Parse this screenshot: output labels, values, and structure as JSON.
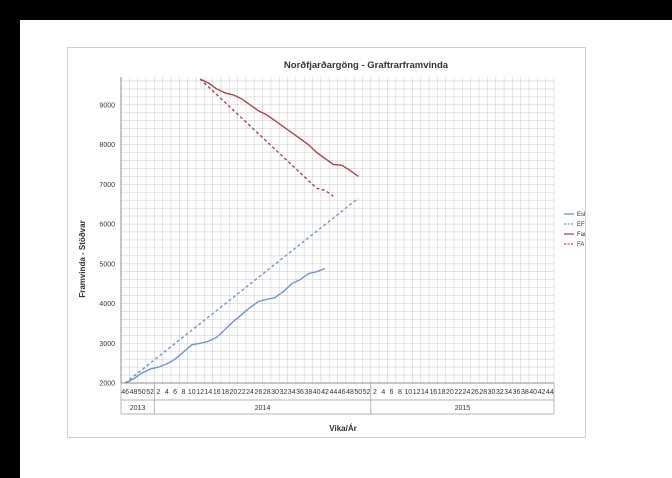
{
  "chart_data": {
    "type": "line",
    "title": "Norðfjarðargöng - Graftrarframvinda",
    "xlabel": "Vika/Ár",
    "ylabel": "Framvinda - Stöðvar",
    "ylim": [
      2000,
      9700
    ],
    "yticks": [
      2000,
      3000,
      4000,
      5000,
      6000,
      7000,
      8000,
      9000
    ],
    "grid": true,
    "legend_position": "right",
    "x_ticks": [
      {
        "year": "2013",
        "weeks": [
          "46",
          "48",
          "50",
          "52"
        ]
      },
      {
        "year": "2014",
        "weeks": [
          "2",
          "4",
          "6",
          "8",
          "10",
          "12",
          "14",
          "16",
          "18",
          "20",
          "22",
          "24",
          "26",
          "28",
          "30",
          "32",
          "34",
          "36",
          "38",
          "40",
          "42",
          "44",
          "46",
          "48",
          "50",
          "52"
        ]
      },
      {
        "year": "2015",
        "weeks": [
          "2",
          "4",
          "6",
          "8",
          "10",
          "12",
          "14",
          "16",
          "18",
          "20",
          "22",
          "24",
          "26",
          "28",
          "30",
          "32",
          "34",
          "36",
          "38",
          "40",
          "42",
          "44"
        ]
      }
    ],
    "series": [
      {
        "name": "Eskifj.",
        "color": "#6f93c6",
        "dash": "solid",
        "points": [
          [
            0,
            2000
          ],
          [
            1,
            2100
          ],
          [
            2,
            2250
          ],
          [
            3,
            2350
          ],
          [
            4,
            2400
          ],
          [
            5,
            2480
          ],
          [
            6,
            2600
          ],
          [
            7,
            2780
          ],
          [
            8,
            2960
          ],
          [
            9,
            3000
          ],
          [
            10,
            3050
          ],
          [
            11,
            3150
          ],
          [
            12,
            3350
          ],
          [
            13,
            3550
          ],
          [
            14,
            3720
          ],
          [
            15,
            3900
          ],
          [
            16,
            4050
          ],
          [
            17,
            4100
          ],
          [
            18,
            4150
          ],
          [
            19,
            4300
          ],
          [
            20,
            4500
          ],
          [
            21,
            4600
          ],
          [
            22,
            4750
          ],
          [
            23,
            4800
          ],
          [
            24,
            4880
          ]
        ]
      },
      {
        "name": "EF áætlað",
        "color": "#6f93c6",
        "dash": "dashed",
        "points": [
          [
            0,
            2000
          ],
          [
            28,
            6650
          ]
        ]
      },
      {
        "name": "Fannard.",
        "color": "#a8474a",
        "dash": "solid",
        "points": [
          [
            9,
            9650
          ],
          [
            10,
            9550
          ],
          [
            11,
            9400
          ],
          [
            12,
            9300
          ],
          [
            13,
            9250
          ],
          [
            14,
            9150
          ],
          [
            15,
            9000
          ],
          [
            16,
            8850
          ],
          [
            17,
            8750
          ],
          [
            18,
            8600
          ],
          [
            19,
            8450
          ],
          [
            20,
            8300
          ],
          [
            21,
            8150
          ],
          [
            22,
            8000
          ],
          [
            23,
            7800
          ],
          [
            24,
            7650
          ],
          [
            25,
            7500
          ],
          [
            26,
            7480
          ],
          [
            27,
            7350
          ],
          [
            28,
            7200
          ]
        ]
      },
      {
        "name": "FA áætlað",
        "color": "#a8474a",
        "dash": "dashed",
        "points": [
          [
            9,
            9650
          ],
          [
            23,
            6900
          ],
          [
            24,
            6850
          ],
          [
            25,
            6700
          ]
        ]
      }
    ]
  }
}
